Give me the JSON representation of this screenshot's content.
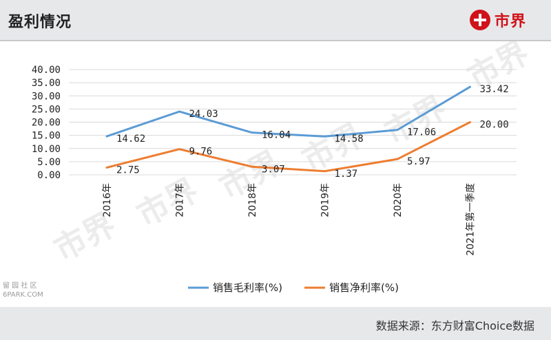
{
  "header": {
    "title": "盈利情况",
    "brand": "市界"
  },
  "watermark": {
    "brand": "市界",
    "corner_line1": "留 园 社 区",
    "corner_line2": "6PARK.COM"
  },
  "source": "数据来源：东方财富Choice数据",
  "colors": {
    "gross": "#5b9bd5",
    "net": "#ed7d31",
    "brand": "#d0121b"
  },
  "chart_data": {
    "type": "line",
    "categories": [
      "2016年",
      "2017年",
      "2018年",
      "2019年",
      "2020年",
      "2021年第一季度"
    ],
    "series": [
      {
        "name": "销售毛利率(%)",
        "values": [
          14.62,
          24.03,
          16.04,
          14.58,
          17.06,
          33.42
        ],
        "labels": [
          "14.62",
          "24.03",
          "16.04",
          "14.58",
          "17.06",
          "33.42"
        ]
      },
      {
        "name": "销售净利率(%)",
        "values": [
          2.75,
          9.76,
          3.07,
          1.37,
          5.97,
          20.0
        ],
        "labels": [
          "2.75",
          "9.76",
          "3.07",
          "1.37",
          "5.97",
          "20.00"
        ]
      }
    ],
    "ylim": [
      0,
      40
    ],
    "yticks": [
      "0.00",
      "5.00",
      "10.00",
      "15.00",
      "20.00",
      "25.00",
      "30.00",
      "35.00",
      "40.00"
    ],
    "grid": true,
    "legend_position": "bottom"
  }
}
